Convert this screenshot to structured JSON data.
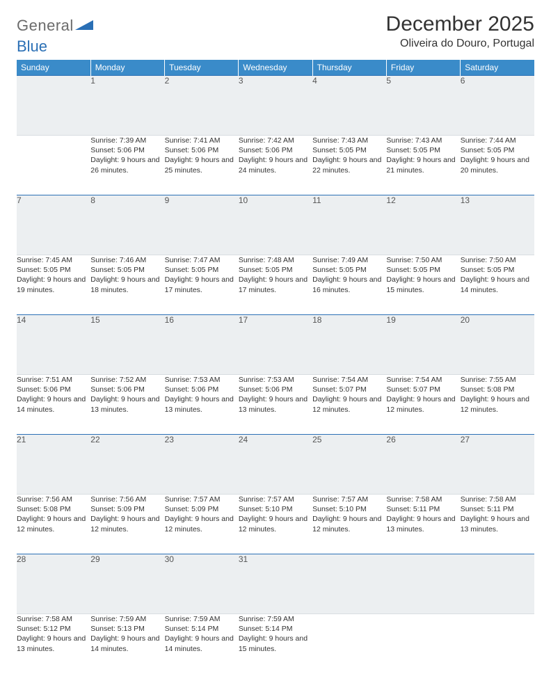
{
  "logo": {
    "text1": "General",
    "text2": "Blue"
  },
  "header": {
    "month": "December 2025",
    "location": "Oliveira do Douro, Portugal"
  },
  "colors": {
    "header_bg": "#3a8bc9",
    "border": "#2a6fb5",
    "daynum_bg": "#eceff1",
    "logo_gray": "#6b6b6b",
    "logo_blue": "#2a6fb5"
  },
  "weekdays": [
    "Sunday",
    "Monday",
    "Tuesday",
    "Wednesday",
    "Thursday",
    "Friday",
    "Saturday"
  ],
  "weeks": [
    {
      "nums": [
        "",
        "1",
        "2",
        "3",
        "4",
        "5",
        "6"
      ],
      "cells": [
        null,
        {
          "sr": "7:39 AM",
          "ss": "5:06 PM",
          "dl": "9 hours and 26 minutes."
        },
        {
          "sr": "7:41 AM",
          "ss": "5:06 PM",
          "dl": "9 hours and 25 minutes."
        },
        {
          "sr": "7:42 AM",
          "ss": "5:06 PM",
          "dl": "9 hours and 24 minutes."
        },
        {
          "sr": "7:43 AM",
          "ss": "5:05 PM",
          "dl": "9 hours and 22 minutes."
        },
        {
          "sr": "7:43 AM",
          "ss": "5:05 PM",
          "dl": "9 hours and 21 minutes."
        },
        {
          "sr": "7:44 AM",
          "ss": "5:05 PM",
          "dl": "9 hours and 20 minutes."
        }
      ]
    },
    {
      "nums": [
        "7",
        "8",
        "9",
        "10",
        "11",
        "12",
        "13"
      ],
      "cells": [
        {
          "sr": "7:45 AM",
          "ss": "5:05 PM",
          "dl": "9 hours and 19 minutes."
        },
        {
          "sr": "7:46 AM",
          "ss": "5:05 PM",
          "dl": "9 hours and 18 minutes."
        },
        {
          "sr": "7:47 AM",
          "ss": "5:05 PM",
          "dl": "9 hours and 17 minutes."
        },
        {
          "sr": "7:48 AM",
          "ss": "5:05 PM",
          "dl": "9 hours and 17 minutes."
        },
        {
          "sr": "7:49 AM",
          "ss": "5:05 PM",
          "dl": "9 hours and 16 minutes."
        },
        {
          "sr": "7:50 AM",
          "ss": "5:05 PM",
          "dl": "9 hours and 15 minutes."
        },
        {
          "sr": "7:50 AM",
          "ss": "5:05 PM",
          "dl": "9 hours and 14 minutes."
        }
      ]
    },
    {
      "nums": [
        "14",
        "15",
        "16",
        "17",
        "18",
        "19",
        "20"
      ],
      "cells": [
        {
          "sr": "7:51 AM",
          "ss": "5:06 PM",
          "dl": "9 hours and 14 minutes."
        },
        {
          "sr": "7:52 AM",
          "ss": "5:06 PM",
          "dl": "9 hours and 13 minutes."
        },
        {
          "sr": "7:53 AM",
          "ss": "5:06 PM",
          "dl": "9 hours and 13 minutes."
        },
        {
          "sr": "7:53 AM",
          "ss": "5:06 PM",
          "dl": "9 hours and 13 minutes."
        },
        {
          "sr": "7:54 AM",
          "ss": "5:07 PM",
          "dl": "9 hours and 12 minutes."
        },
        {
          "sr": "7:54 AM",
          "ss": "5:07 PM",
          "dl": "9 hours and 12 minutes."
        },
        {
          "sr": "7:55 AM",
          "ss": "5:08 PM",
          "dl": "9 hours and 12 minutes."
        }
      ]
    },
    {
      "nums": [
        "21",
        "22",
        "23",
        "24",
        "25",
        "26",
        "27"
      ],
      "cells": [
        {
          "sr": "7:56 AM",
          "ss": "5:08 PM",
          "dl": "9 hours and 12 minutes."
        },
        {
          "sr": "7:56 AM",
          "ss": "5:09 PM",
          "dl": "9 hours and 12 minutes."
        },
        {
          "sr": "7:57 AM",
          "ss": "5:09 PM",
          "dl": "9 hours and 12 minutes."
        },
        {
          "sr": "7:57 AM",
          "ss": "5:10 PM",
          "dl": "9 hours and 12 minutes."
        },
        {
          "sr": "7:57 AM",
          "ss": "5:10 PM",
          "dl": "9 hours and 12 minutes."
        },
        {
          "sr": "7:58 AM",
          "ss": "5:11 PM",
          "dl": "9 hours and 13 minutes."
        },
        {
          "sr": "7:58 AM",
          "ss": "5:11 PM",
          "dl": "9 hours and 13 minutes."
        }
      ]
    },
    {
      "nums": [
        "28",
        "29",
        "30",
        "31",
        "",
        "",
        ""
      ],
      "cells": [
        {
          "sr": "7:58 AM",
          "ss": "5:12 PM",
          "dl": "9 hours and 13 minutes."
        },
        {
          "sr": "7:59 AM",
          "ss": "5:13 PM",
          "dl": "9 hours and 14 minutes."
        },
        {
          "sr": "7:59 AM",
          "ss": "5:14 PM",
          "dl": "9 hours and 14 minutes."
        },
        {
          "sr": "7:59 AM",
          "ss": "5:14 PM",
          "dl": "9 hours and 15 minutes."
        },
        null,
        null,
        null
      ]
    }
  ],
  "labels": {
    "sunrise": "Sunrise:",
    "sunset": "Sunset:",
    "daylight": "Daylight:"
  }
}
